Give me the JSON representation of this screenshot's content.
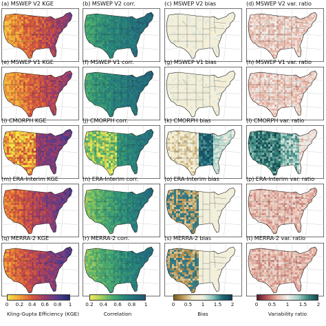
{
  "map": {
    "region": "Contiguous United States",
    "rows": [
      {
        "panels": [
          {
            "label": "(a) MSWEP V2 KGE",
            "metric": "kge",
            "product": "MSWEP V2"
          },
          {
            "label": "(b) MSWEP V2 corr.",
            "metric": "corr",
            "product": "MSWEP V2"
          },
          {
            "label": "(c) MSWEP V2 bias",
            "metric": "bias",
            "product": "MSWEP V2"
          },
          {
            "label": "(d) MSWEP V2 var. ratio",
            "metric": "var",
            "product": "MSWEP V2"
          }
        ]
      },
      {
        "panels": [
          {
            "label": "(e) MSWEP V1 KGE",
            "metric": "kge",
            "product": "MSWEP V1"
          },
          {
            "label": "(f) MSWEP V1 corr.",
            "metric": "corr",
            "product": "MSWEP V1"
          },
          {
            "label": "(g) MSWEP V1 bias",
            "metric": "bias",
            "product": "MSWEP V1"
          },
          {
            "label": "(h) MSWEP V1 var. ratio",
            "metric": "var",
            "product": "MSWEP V1"
          }
        ]
      },
      {
        "panels": [
          {
            "label": "(i) CMORPH KGE",
            "metric": "kge",
            "product": "CMORPH"
          },
          {
            "label": "(j) CMORPH corr.",
            "metric": "corr",
            "product": "CMORPH"
          },
          {
            "label": "(k) CMORPH bias",
            "metric": "bias",
            "product": "CMORPH"
          },
          {
            "label": "(l) CMORPH var. ratio",
            "metric": "var",
            "product": "CMORPH"
          }
        ]
      },
      {
        "panels": [
          {
            "label": "(m) ERA-Interim KGE",
            "metric": "kge",
            "product": "ERA-Interim"
          },
          {
            "label": "(n) ERA-Interim corr.",
            "metric": "corr",
            "product": "ERA-Interim"
          },
          {
            "label": "(o) ERA-Interim bias",
            "metric": "bias",
            "product": "ERA-Interim"
          },
          {
            "label": "(p) ERA-Interim var. ratio",
            "metric": "var",
            "product": "ERA-Interim"
          }
        ]
      },
      {
        "panels": [
          {
            "label": "(q) MERRA-2 KGE",
            "metric": "kge",
            "product": "MERRA-2"
          },
          {
            "label": "(r) MERRA-2 corr.",
            "metric": "corr",
            "product": "MERRA-2"
          },
          {
            "label": "(s) MERRA-2 bias",
            "metric": "bias",
            "product": "MERRA-2"
          },
          {
            "label": "(t) MERRA-2 var. ratio",
            "metric": "var",
            "product": "MERRA-2"
          }
        ]
      }
    ],
    "colorbars": [
      {
        "label": "Kling-Gupta Efficiency (KGE)",
        "ticks": [
          "0",
          "0.2",
          "0.4",
          "0.6",
          "0.8",
          "1"
        ],
        "stops": [
          "#f5e44a",
          "#f0a03a",
          "#d8563c",
          "#9b3d6a",
          "#5a3d8c",
          "#1e2a6e"
        ]
      },
      {
        "label": "Correlation",
        "ticks": [
          "0.2",
          "0.4",
          "0.6",
          "0.8",
          "1"
        ],
        "stops": [
          "#f2e85a",
          "#a6cf5c",
          "#4fae6f",
          "#2a8a7a",
          "#246e7e",
          "#20566e"
        ]
      },
      {
        "label": "Bias",
        "ticks": [
          "0",
          "0.5",
          "1",
          "1.5",
          "2"
        ],
        "stops": [
          "#7a5a1e",
          "#c2a060",
          "#f3edd0",
          "#f2f0e0",
          "#8cc6c0",
          "#1f6a78",
          "#0e3e55"
        ]
      },
      {
        "label": "Variability ratio",
        "ticks": [
          "0",
          "0.5",
          "1",
          "1.5",
          "2"
        ],
        "stops": [
          "#5a1a2a",
          "#b85a5a",
          "#e8b8a8",
          "#f2f0ec",
          "#a8d2c8",
          "#3c8a80",
          "#124a52"
        ]
      }
    ]
  }
}
